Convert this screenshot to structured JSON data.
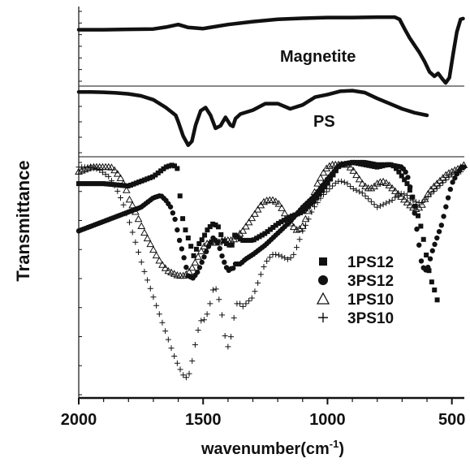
{
  "chart_data": {
    "type": "line",
    "xlabel": "wavenumber(cm",
    "xlabel_sup": "-1",
    "xlabel_suffix": ")",
    "ylabel": "Transmittance",
    "xlim": [
      2000,
      450
    ],
    "x_reversed": true,
    "xticks": [
      2000,
      1500,
      1000,
      500
    ],
    "y_ticks_unlabeled": true,
    "grid": false,
    "legend_position": "lower-right of bottom panel",
    "panels": [
      {
        "id": "magnetite",
        "label": "Magnetite",
        "ylim": [
          0,
          1
        ],
        "series": [
          {
            "marker": "line",
            "x": [
              2000,
              1900,
              1800,
              1700,
              1650,
              1600,
              1560,
              1500,
              1400,
              1300,
              1200,
              1100,
              1000,
              900,
              800,
              760,
              730,
              710,
              690,
              670,
              650,
              630,
              610,
              590,
              570,
              555,
              540,
              525,
              510,
              495,
              480,
              465,
              455
            ],
            "y": [
              0.27,
              0.27,
              0.265,
              0.26,
              0.235,
              0.2,
              0.24,
              0.255,
              0.2,
              0.16,
              0.13,
              0.115,
              0.105,
              0.105,
              0.1,
              0.1,
              0.1,
              0.13,
              0.26,
              0.38,
              0.48,
              0.58,
              0.7,
              0.84,
              0.9,
              0.86,
              0.93,
              0.99,
              0.92,
              0.6,
              0.3,
              0.13,
              0.12
            ]
          }
        ]
      },
      {
        "id": "ps",
        "label": "PS",
        "ylim": [
          0,
          1
        ],
        "series": [
          {
            "marker": "line",
            "x": [
              2000,
              1950,
              1900,
              1850,
              1800,
              1750,
              1700,
              1650,
              1610,
              1600,
              1580,
              1560,
              1545,
              1530,
              1510,
              1490,
              1470,
              1450,
              1430,
              1410,
              1390,
              1380,
              1370,
              1350,
              1300,
              1250,
              1200,
              1150,
              1100,
              1050,
              1000,
              950,
              900,
              850,
              800,
              750,
              700,
              650,
              600
            ],
            "y": [
              0.04,
              0.04,
              0.045,
              0.055,
              0.07,
              0.1,
              0.16,
              0.28,
              0.4,
              0.5,
              0.72,
              0.86,
              0.8,
              0.55,
              0.33,
              0.28,
              0.4,
              0.6,
              0.56,
              0.43,
              0.55,
              0.57,
              0.45,
              0.38,
              0.32,
              0.22,
              0.22,
              0.3,
              0.24,
              0.12,
              0.08,
              0.03,
              0.02,
              0.05,
              0.14,
              0.22,
              0.3,
              0.36,
              0.4
            ]
          }
        ]
      },
      {
        "id": "samples",
        "ylim": [
          0,
          1
        ],
        "series": [
          {
            "name": "1PS12",
            "marker": "square",
            "x": [
              2000,
              1900,
              1800,
              1700,
              1650,
              1620,
              1600,
              1590,
              1580,
              1570,
              1560,
              1550,
              1540,
              1520,
              1500,
              1480,
              1460,
              1440,
              1420,
              1400,
              1380,
              1370,
              1360,
              1340,
              1300,
              1250,
              1200,
              1150,
              1100,
              1050,
              1000,
              950,
              900,
              850,
              800,
              760,
              740,
              720,
              700,
              680,
              660,
              640,
              620,
              600,
              590,
              580,
              570,
              560,
              555,
              550
            ],
            "y": [
              0.1,
              0.1,
              0.11,
              0.07,
              0.03,
              0.02,
              0.04,
              0.2,
              0.26,
              0.3,
              0.33,
              0.36,
              0.41,
              0.36,
              0.33,
              0.29,
              0.27,
              0.28,
              0.34,
              0.36,
              0.36,
              0.3,
              0.33,
              0.34,
              0.34,
              0.31,
              0.27,
              0.24,
              0.22,
              0.17,
              0.1,
              0.02,
              0.01,
              0.02,
              0.03,
              0.02,
              0.02,
              0.04,
              0.07,
              0.1,
              0.15,
              0.22,
              0.3,
              0.42,
              0.48,
              0.52,
              0.55,
              0.59,
              0.6,
              0.6
            ]
          },
          {
            "name": "3PS12",
            "marker": "circle",
            "x": [
              2000,
              1900,
              1800,
              1750,
              1700,
              1670,
              1650,
              1630,
              1610,
              1600,
              1580,
              1560,
              1540,
              1520,
              1500,
              1480,
              1460,
              1440,
              1420,
              1400,
              1390,
              1380,
              1370,
              1350,
              1330,
              1300,
              1250,
              1200,
              1150,
              1100,
              1050,
              1000,
              950,
              900,
              850,
              800,
              750,
              700,
              680,
              660,
              640,
              620,
              600,
              580,
              560,
              540,
              520,
              500,
              480,
              460,
              450
            ],
            "y": [
              0.3,
              0.26,
              0.22,
              0.2,
              0.16,
              0.15,
              0.17,
              0.2,
              0.26,
              0.32,
              0.4,
              0.49,
              0.5,
              0.47,
              0.42,
              0.37,
              0.33,
              0.35,
              0.42,
              0.47,
              0.46,
              0.46,
              0.44,
              0.44,
              0.42,
              0.4,
              0.36,
              0.31,
              0.26,
              0.2,
              0.15,
              0.08,
              0.02,
              0.01,
              0.01,
              0.02,
              0.02,
              0.03,
              0.06,
              0.15,
              0.3,
              0.45,
              0.47,
              0.39,
              0.33,
              0.27,
              0.18,
              0.1,
              0.06,
              0.03,
              0.03
            ]
          },
          {
            "name": "1PS10",
            "marker": "triangle",
            "x": [
              2000,
              1950,
              1900,
              1870,
              1850,
              1830,
              1810,
              1800,
              1780,
              1760,
              1740,
              1720,
              1700,
              1680,
              1660,
              1640,
              1620,
              1600,
              1580,
              1560,
              1540,
              1520,
              1500,
              1480,
              1460,
              1440,
              1420,
              1400,
              1380,
              1360,
              1340,
              1320,
              1300,
              1280,
              1260,
              1240,
              1220,
              1200,
              1180,
              1160,
              1140,
              1120,
              1100,
              1080,
              1060,
              1040,
              1020,
              1000,
              980,
              960,
              940,
              920,
              900,
              880,
              860,
              840,
              820,
              800,
              780,
              760,
              740,
              720,
              700,
              680,
              660,
              640,
              620,
              600,
              580,
              560,
              540,
              520,
              500,
              480,
              460,
              450
            ],
            "y": [
              0.05,
              0.03,
              0.03,
              0.03,
              0.05,
              0.08,
              0.12,
              0.16,
              0.2,
              0.25,
              0.3,
              0.34,
              0.38,
              0.42,
              0.45,
              0.47,
              0.48,
              0.49,
              0.49,
              0.48,
              0.45,
              0.41,
              0.37,
              0.35,
              0.35,
              0.35,
              0.34,
              0.34,
              0.34,
              0.32,
              0.3,
              0.27,
              0.24,
              0.21,
              0.18,
              0.17,
              0.17,
              0.18,
              0.21,
              0.25,
              0.28,
              0.3,
              0.28,
              0.23,
              0.16,
              0.1,
              0.06,
              0.03,
              0.02,
              0.02,
              0.02,
              0.02,
              0.04,
              0.07,
              0.1,
              0.12,
              0.12,
              0.1,
              0.09,
              0.1,
              0.12,
              0.14,
              0.16,
              0.18,
              0.2,
              0.21,
              0.19,
              0.15,
              0.12,
              0.1,
              0.08,
              0.06,
              0.05,
              0.04,
              0.03,
              0.02
            ]
          },
          {
            "name": "3PS10",
            "marker": "plus",
            "x": [
              2000,
              1960,
              1920,
              1880,
              1860,
              1840,
              1820,
              1800,
              1780,
              1760,
              1740,
              1720,
              1700,
              1680,
              1660,
              1640,
              1620,
              1600,
              1580,
              1570,
              1560,
              1550,
              1540,
              1530,
              1520,
              1510,
              1500,
              1490,
              1480,
              1470,
              1460,
              1450,
              1440,
              1430,
              1420,
              1410,
              1400,
              1390,
              1380,
              1370,
              1360,
              1340,
              1320,
              1300,
              1280,
              1260,
              1240,
              1220,
              1200,
              1180,
              1160,
              1140,
              1120,
              1100,
              1080,
              1060,
              1040,
              1020,
              1000,
              980,
              960,
              940,
              920,
              900,
              880,
              860,
              840,
              820,
              800,
              780,
              760,
              740,
              720,
              700,
              680,
              660,
              640,
              620,
              600,
              580,
              560,
              540,
              520,
              500,
              480,
              460
            ],
            "y": [
              0.03,
              0.03,
              0.04,
              0.07,
              0.1,
              0.14,
              0.19,
              0.25,
              0.32,
              0.39,
              0.46,
              0.52,
              0.58,
              0.64,
              0.7,
              0.76,
              0.82,
              0.87,
              0.91,
              0.92,
              0.92,
              0.88,
              0.83,
              0.77,
              0.72,
              0.68,
              0.68,
              0.67,
              0.64,
              0.6,
              0.55,
              0.54,
              0.57,
              0.62,
              0.68,
              0.76,
              0.79,
              0.76,
              0.7,
              0.62,
              0.6,
              0.62,
              0.6,
              0.58,
              0.52,
              0.46,
              0.42,
              0.4,
              0.4,
              0.41,
              0.42,
              0.41,
              0.36,
              0.3,
              0.26,
              0.21,
              0.18,
              0.15,
              0.13,
              0.11,
              0.09,
              0.09,
              0.1,
              0.12,
              0.13,
              0.14,
              0.16,
              0.18,
              0.2,
              0.19,
              0.18,
              0.17,
              0.15,
              0.14,
              0.15,
              0.17,
              0.18,
              0.18,
              0.16,
              0.14,
              0.12,
              0.1,
              0.08,
              0.06,
              0.05,
              0.05
            ]
          }
        ]
      }
    ]
  }
}
